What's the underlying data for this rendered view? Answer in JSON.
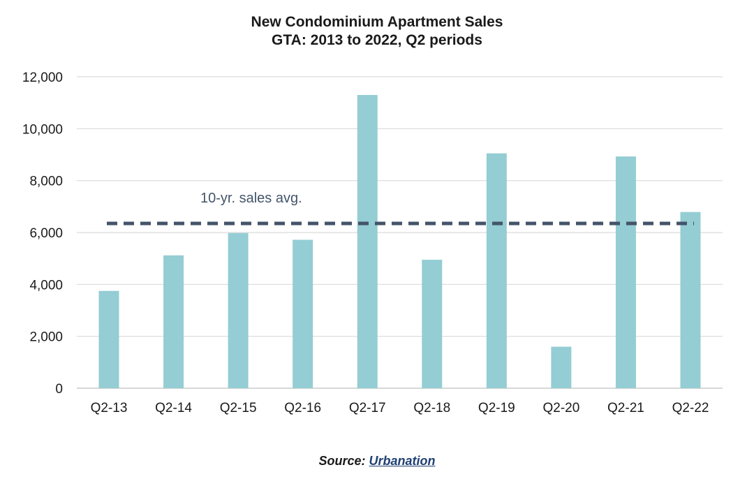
{
  "chart_data": {
    "type": "bar",
    "title": "New Condominium Apartment Sales",
    "subtitle": "GTA: 2013 to 2022, Q2 periods",
    "categories": [
      "Q2-13",
      "Q2-14",
      "Q2-15",
      "Q2-16",
      "Q2-17",
      "Q2-18",
      "Q2-19",
      "Q2-20",
      "Q2-21",
      "Q2-22"
    ],
    "values": [
      3750,
      5120,
      5980,
      5720,
      11300,
      4950,
      9050,
      1600,
      8930,
      6790
    ],
    "series_color": "#94cdd3",
    "ylim": [
      0,
      12000
    ],
    "yticks": [
      0,
      2000,
      4000,
      6000,
      8000,
      10000,
      12000
    ],
    "ytick_labels": [
      "0",
      "2,000",
      "4,000",
      "6,000",
      "8,000",
      "10,000",
      "12,000"
    ],
    "grid": true,
    "reference_line": {
      "label": "10-yr. sales avg.",
      "value": 6350,
      "style": "dashed",
      "color": "#44546a"
    }
  },
  "source": {
    "prefix": "Source: ",
    "link_text": "Urbanation"
  }
}
